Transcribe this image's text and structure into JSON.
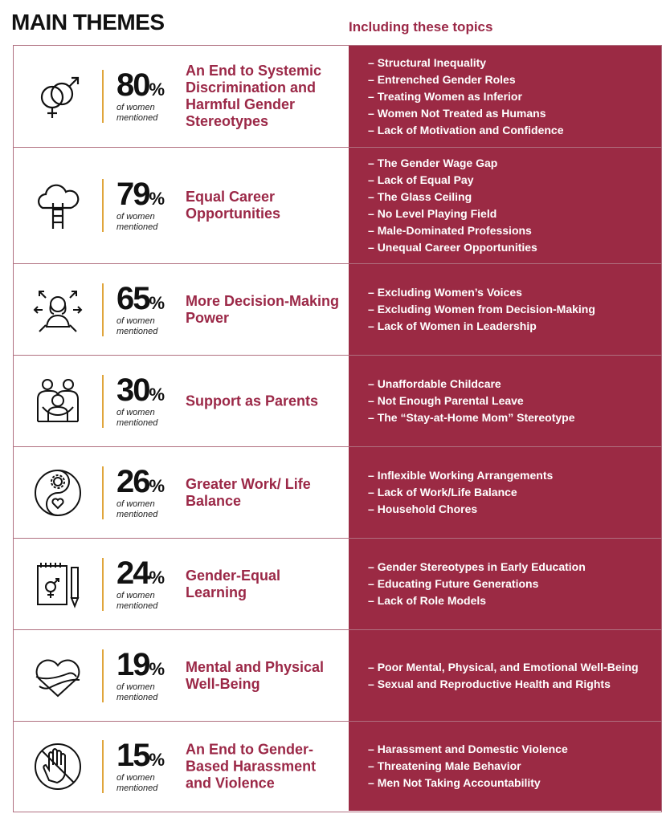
{
  "page_title": "MAIN THEMES",
  "topics_header": "Including these topics",
  "women_label_1": "of women",
  "women_label_2": "mentioned",
  "themes": [
    {
      "percent": "80",
      "title": "An End to Systemic Discrimination and Harmful Gender Stereotypes",
      "icon": "gender-symbols-icon",
      "topics": [
        "Structural Inequality",
        "Entrenched Gender Roles",
        "Treating Women as Inferior",
        "Women Not Treated as Humans",
        "Lack of Motivation and Confidence"
      ]
    },
    {
      "percent": "79",
      "title": "Equal Career Opportunities",
      "icon": "cloud-ladder-icon",
      "topics": [
        "The Gender Wage Gap",
        "Lack of Equal Pay",
        "The Glass Ceiling",
        "No Level Playing Field",
        "Male-Dominated Professions",
        "Unequal Career Opportunities"
      ]
    },
    {
      "percent": "65",
      "title": "More Decision-Making Power",
      "icon": "woman-arrows-icon",
      "topics": [
        "Excluding Women’s Voices",
        "Excluding Women from Decision-Making",
        "Lack of Women in Leadership"
      ]
    },
    {
      "percent": "30",
      "title": "Support as Parents",
      "icon": "parents-child-icon",
      "topics": [
        "Unaffordable Childcare",
        "Not Enough Parental Leave",
        "The “Stay-at-Home Mom” Stereotype"
      ]
    },
    {
      "percent": "26",
      "title": "Greater Work/ Life Balance",
      "icon": "yin-yang-gear-heart-icon",
      "topics": [
        "Inflexible Working Arrangements",
        "Lack of Work/Life Balance",
        "Household Chores"
      ]
    },
    {
      "percent": "24",
      "title": "Gender-Equal Learning",
      "icon": "notepad-pencil-icon",
      "topics": [
        "Gender Stereotypes in Early Education",
        "Educating Future Generations",
        "Lack of Role Models"
      ]
    },
    {
      "percent": "19",
      "title": "Mental and Physical Well-Being",
      "icon": "heart-hug-icon",
      "topics": [
        "Poor Mental, Physical, and Emotional Well-Being",
        "Sexual and Reproductive Health and Rights"
      ]
    },
    {
      "percent": "15",
      "title": "An End to Gender-Based Harassment and Violence",
      "icon": "no-hand-icon",
      "topics": [
        "Harassment and Domestic Violence",
        "Threatening Male Behavior",
        "Men Not Taking Accountability"
      ]
    }
  ]
}
